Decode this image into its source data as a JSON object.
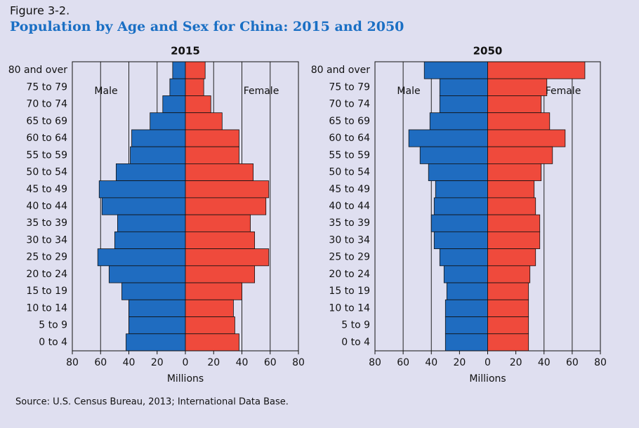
{
  "figure": {
    "label": "Figure 3-2.",
    "title": "Population by Age and Sex for China: 2015 and 2050",
    "source": "Source: U.S. Census Bureau, 2013; International Data Base."
  },
  "chart_data": [
    {
      "type": "pyramid",
      "title": "2015",
      "xlabel": "Millions",
      "categories": [
        "80 and over",
        "75 to 79",
        "70 to 74",
        "65 to 69",
        "60 to 64",
        "55 to 59",
        "50 to 54",
        "45 to 49",
        "40 to 44",
        "35 to 39",
        "30 to 34",
        "25 to 29",
        "20 to 24",
        "15 to 19",
        "10 to 14",
        "5 to 9",
        "0 to 4"
      ],
      "series": [
        {
          "name": "Male",
          "color": "#1f6cc0",
          "side": "left",
          "values": [
            9,
            11,
            16,
            25,
            38,
            39,
            49,
            61,
            59,
            48,
            50,
            62,
            54,
            45,
            40,
            40,
            42
          ]
        },
        {
          "name": "Female",
          "color": "#ef4a3c",
          "side": "right",
          "values": [
            14,
            13,
            18,
            26,
            38,
            38,
            48,
            59,
            57,
            46,
            49,
            59,
            49,
            40,
            34,
            35,
            38
          ]
        }
      ],
      "xlim": [
        -80,
        80
      ],
      "xticks": [
        {
          "value": -80,
          "label": "80"
        },
        {
          "value": -60,
          "label": "60"
        },
        {
          "value": -40,
          "label": "40"
        },
        {
          "value": -20,
          "label": "20"
        },
        0,
        20,
        40,
        60,
        80
      ],
      "grid": true
    },
    {
      "type": "pyramid",
      "title": "2050",
      "xlabel": "Millions",
      "categories": [
        "80 and over",
        "75 to 79",
        "70 to 74",
        "65 to 69",
        "60 to 64",
        "55 to 59",
        "50 to 54",
        "45 to 49",
        "40 to 44",
        "35 to 39",
        "30 to 34",
        "25 to 29",
        "20 to 24",
        "15 to 19",
        "10 to 14",
        "5 to 9",
        "0 to 4"
      ],
      "series": [
        {
          "name": "Male",
          "color": "#1f6cc0",
          "side": "left",
          "values": [
            45,
            34,
            34,
            41,
            56,
            48,
            42,
            37,
            38,
            40,
            38,
            34,
            31,
            29,
            30,
            30,
            30
          ]
        },
        {
          "name": "Female",
          "color": "#ef4a3c",
          "side": "right",
          "values": [
            69,
            42,
            38,
            44,
            55,
            46,
            38,
            33,
            34,
            37,
            37,
            34,
            30,
            29,
            29,
            29,
            29
          ]
        }
      ],
      "xlim": [
        -80,
        80
      ],
      "xticks": [
        {
          "value": -80,
          "label": "80"
        },
        {
          "value": -60,
          "label": "60"
        },
        {
          "value": -40,
          "label": "40"
        },
        {
          "value": -20,
          "label": "20"
        },
        0,
        20,
        40,
        60,
        80
      ],
      "grid": true
    }
  ]
}
